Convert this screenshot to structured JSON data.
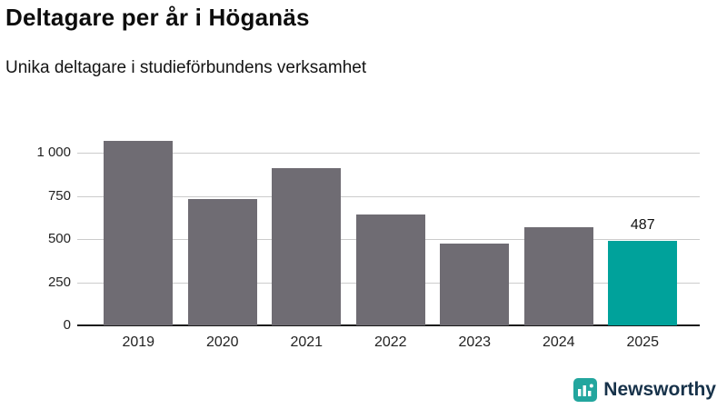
{
  "chart_data": {
    "type": "bar",
    "title": "Deltagare per år i Höganäs",
    "subtitle": "Unika deltagare i studieförbundens verksamhet",
    "categories": [
      "2019",
      "2020",
      "2021",
      "2022",
      "2023",
      "2024",
      "2025"
    ],
    "values": [
      1070,
      730,
      910,
      640,
      475,
      570,
      487
    ],
    "bar_color": "#6f6c73",
    "highlight_index": 6,
    "highlight_color": "#00a29b",
    "value_labels": [
      {
        "index": 6,
        "text": "487"
      }
    ],
    "yaxis": {
      "ticks": [
        0,
        250,
        500,
        750,
        1000
      ],
      "tick_labels": [
        "0",
        "250",
        "500",
        "750",
        "1 000"
      ],
      "ylim": [
        0,
        1150
      ],
      "grid": true
    },
    "xlabel": "",
    "ylabel": "",
    "legend": "none"
  },
  "branding": {
    "name": "Newsworthy",
    "icon": "bar-chart-icon",
    "icon_color": "#23a69e",
    "text_color": "#17324a"
  }
}
